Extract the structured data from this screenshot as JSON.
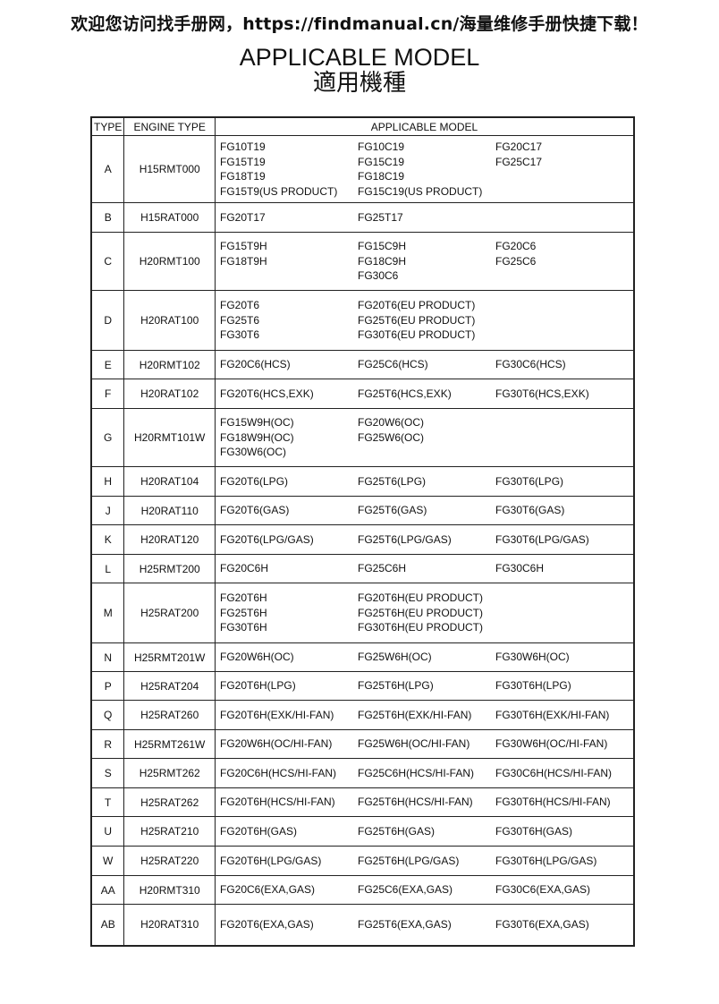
{
  "banner": "欢迎您访问找手册网，https://findmanual.cn/海量维修手册快捷下载！",
  "title": "APPLICABLE MODEL",
  "subtitle": "適用機種",
  "table": {
    "headers": [
      "TYPE",
      "ENGINE TYPE",
      "APPLICABLE MODEL"
    ],
    "rows": [
      {
        "type": "A",
        "engine": "H15RMT000",
        "models": [
          [
            "FG10T19",
            "FG15T19",
            "FG18T19",
            "FG15T9(US PRODUCT)"
          ],
          [
            "FG10C19",
            "FG15C19",
            "FG18C19",
            "FG15C19(US PRODUCT)"
          ],
          [
            "FG20C17",
            "FG25C17"
          ]
        ]
      },
      {
        "type": "B",
        "engine": "H15RAT000",
        "models": [
          [
            "FG20T17"
          ],
          [
            "FG25T17"
          ],
          []
        ]
      },
      {
        "type": "C",
        "engine": "H20RMT100",
        "models": [
          [
            "FG15T9H",
            "FG18T9H"
          ],
          [
            "FG15C9H",
            "FG18C9H",
            "FG30C6"
          ],
          [
            "FG20C6",
            "FG25C6"
          ]
        ]
      },
      {
        "type": "D",
        "engine": "H20RAT100",
        "models": [
          [
            "FG20T6",
            "FG25T6",
            "FG30T6"
          ],
          [
            "FG20T6(EU PRODUCT)",
            "FG25T6(EU PRODUCT)",
            "FG30T6(EU PRODUCT)"
          ],
          []
        ]
      },
      {
        "type": "E",
        "engine": "H20RMT102",
        "models": [
          [
            "FG20C6(HCS)"
          ],
          [
            "FG25C6(HCS)"
          ],
          [
            "FG30C6(HCS)"
          ]
        ]
      },
      {
        "type": "F",
        "engine": "H20RAT102",
        "models": [
          [
            "FG20T6(HCS,EXK)"
          ],
          [
            "FG25T6(HCS,EXK)"
          ],
          [
            "FG30T6(HCS,EXK)"
          ]
        ]
      },
      {
        "type": "G",
        "engine": "H20RMT101W",
        "models": [
          [
            "FG15W9H(OC)",
            "FG18W9H(OC)",
            "FG30W6(OC)"
          ],
          [
            "FG20W6(OC)",
            "FG25W6(OC)"
          ],
          []
        ]
      },
      {
        "type": "H",
        "engine": "H20RAT104",
        "models": [
          [
            "FG20T6(LPG)"
          ],
          [
            "FG25T6(LPG)"
          ],
          [
            "FG30T6(LPG)"
          ]
        ]
      },
      {
        "type": "J",
        "engine": "H20RAT110",
        "models": [
          [
            "FG20T6(GAS)"
          ],
          [
            "FG25T6(GAS)"
          ],
          [
            "FG30T6(GAS)"
          ]
        ]
      },
      {
        "type": "K",
        "engine": "H20RAT120",
        "models": [
          [
            "FG20T6(LPG/GAS)"
          ],
          [
            "FG25T6(LPG/GAS)"
          ],
          [
            "FG30T6(LPG/GAS)"
          ]
        ]
      },
      {
        "type": "L",
        "engine": "H25RMT200",
        "models": [
          [
            "FG20C6H"
          ],
          [
            "FG25C6H"
          ],
          [
            "FG30C6H"
          ]
        ]
      },
      {
        "type": "M",
        "engine": "H25RAT200",
        "models": [
          [
            "FG20T6H",
            "FG25T6H",
            "FG30T6H"
          ],
          [
            "FG20T6H(EU PRODUCT)",
            "FG25T6H(EU PRODUCT)",
            "FG30T6H(EU PRODUCT)"
          ],
          []
        ]
      },
      {
        "type": "N",
        "engine": "H25RMT201W",
        "models": [
          [
            "FG20W6H(OC)"
          ],
          [
            "FG25W6H(OC)"
          ],
          [
            "FG30W6H(OC)"
          ]
        ]
      },
      {
        "type": "P",
        "engine": "H25RAT204",
        "models": [
          [
            "FG20T6H(LPG)"
          ],
          [
            "FG25T6H(LPG)"
          ],
          [
            "FG30T6H(LPG)"
          ]
        ]
      },
      {
        "type": "Q",
        "engine": "H25RAT260",
        "models": [
          [
            "FG20T6H(EXK/HI-FAN)"
          ],
          [
            "FG25T6H(EXK/HI-FAN)"
          ],
          [
            "FG30T6H(EXK/HI-FAN)"
          ]
        ]
      },
      {
        "type": "R",
        "engine": "H25RMT261W",
        "models": [
          [
            "FG20W6H(OC/HI-FAN)"
          ],
          [
            "FG25W6H(OC/HI-FAN)"
          ],
          [
            "FG30W6H(OC/HI-FAN)"
          ]
        ]
      },
      {
        "type": "S",
        "engine": "H25RMT262",
        "models": [
          [
            "FG20C6H(HCS/HI-FAN)"
          ],
          [
            "FG25C6H(HCS/HI-FAN)"
          ],
          [
            "FG30C6H(HCS/HI-FAN)"
          ]
        ]
      },
      {
        "type": "T",
        "engine": "H25RAT262",
        "models": [
          [
            "FG20T6H(HCS/HI-FAN)"
          ],
          [
            "FG25T6H(HCS/HI-FAN)"
          ],
          [
            "FG30T6H(HCS/HI-FAN)"
          ]
        ]
      },
      {
        "type": "U",
        "engine": "H25RAT210",
        "models": [
          [
            "FG20T6H(GAS)"
          ],
          [
            "FG25T6H(GAS)"
          ],
          [
            "FG30T6H(GAS)"
          ]
        ]
      },
      {
        "type": "W",
        "engine": "H25RAT220",
        "models": [
          [
            "FG20T6H(LPG/GAS)"
          ],
          [
            "FG25T6H(LPG/GAS)"
          ],
          [
            "FG30T6H(LPG/GAS)"
          ]
        ]
      },
      {
        "type": "AA",
        "engine": "H20RMT310",
        "models": [
          [
            "FG20C6(EXA,GAS)"
          ],
          [
            "FG25C6(EXA,GAS)"
          ],
          [
            "FG30C6(EXA,GAS)"
          ]
        ]
      },
      {
        "type": "AB",
        "engine": "H20RAT310",
        "models": [
          [
            "FG20T6(EXA,GAS)"
          ],
          [
            "FG25T6(EXA,GAS)"
          ],
          [
            "FG30T6(EXA,GAS)"
          ]
        ]
      }
    ]
  }
}
